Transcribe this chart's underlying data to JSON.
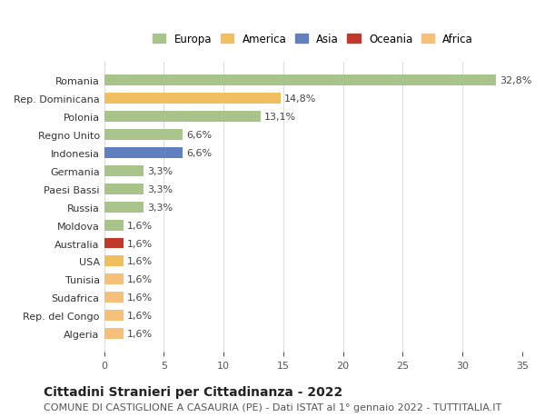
{
  "categories": [
    "Algeria",
    "Rep. del Congo",
    "Sudafrica",
    "Tunisia",
    "USA",
    "Australia",
    "Moldova",
    "Russia",
    "Paesi Bassi",
    "Germania",
    "Indonesia",
    "Regno Unito",
    "Polonia",
    "Rep. Dominicana",
    "Romania"
  ],
  "values": [
    1.6,
    1.6,
    1.6,
    1.6,
    1.6,
    1.6,
    1.6,
    3.3,
    3.3,
    3.3,
    6.6,
    6.6,
    13.1,
    14.8,
    32.8
  ],
  "colors": [
    "#f5c07a",
    "#f5c07a",
    "#f5c07a",
    "#f5c07a",
    "#f0c060",
    "#c0392b",
    "#a8c48a",
    "#a8c48a",
    "#a8c48a",
    "#a8c48a",
    "#6080c0",
    "#a8c48a",
    "#a8c48a",
    "#f0c060",
    "#a8c48a"
  ],
  "labels": [
    "1,6%",
    "1,6%",
    "1,6%",
    "1,6%",
    "1,6%",
    "1,6%",
    "1,6%",
    "3,3%",
    "3,3%",
    "3,3%",
    "6,6%",
    "6,6%",
    "13,1%",
    "14,8%",
    "32,8%"
  ],
  "legend": [
    {
      "label": "Europa",
      "color": "#a8c48a"
    },
    {
      "label": "America",
      "color": "#f0c060"
    },
    {
      "label": "Asia",
      "color": "#6080c0"
    },
    {
      "label": "Oceania",
      "color": "#c0392b"
    },
    {
      "label": "Africa",
      "color": "#f5c07a"
    }
  ],
  "title": "Cittadini Stranieri per Cittadinanza - 2022",
  "subtitle": "COMUNE DI CASTIGLIONE A CASAURIA (PE) - Dati ISTAT al 1° gennaio 2022 - TUTTITALIA.IT",
  "xlim": [
    0,
    35
  ],
  "xticks": [
    0,
    5,
    10,
    15,
    20,
    25,
    30,
    35
  ],
  "bg_color": "#ffffff",
  "grid_color": "#dddddd",
  "bar_height": 0.6,
  "label_fontsize": 8,
  "title_fontsize": 10,
  "subtitle_fontsize": 8,
  "ytick_fontsize": 8,
  "xtick_fontsize": 8
}
